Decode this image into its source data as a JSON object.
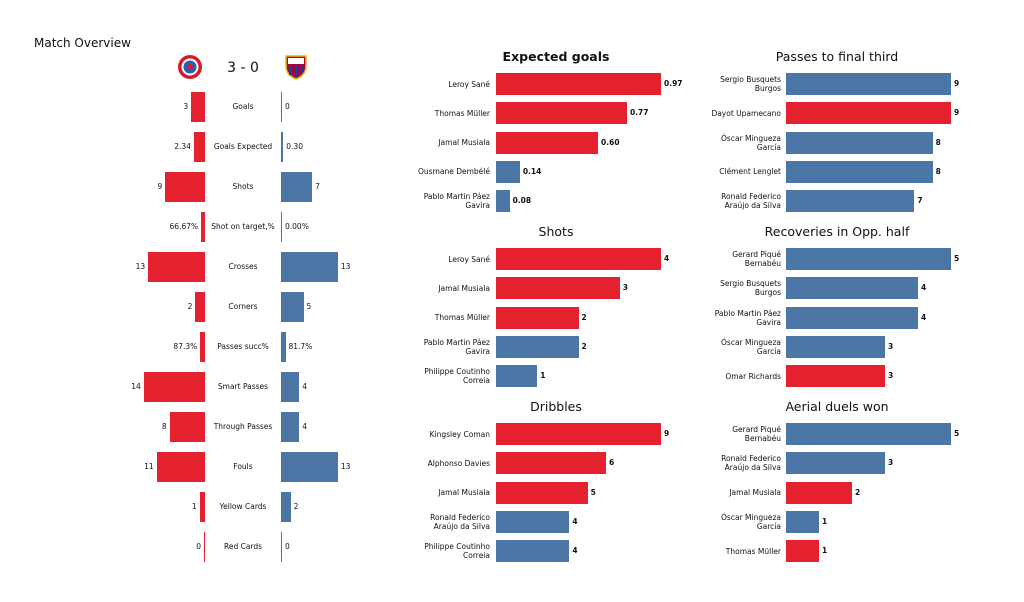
{
  "title": "Match Overview",
  "score": "3 - 0",
  "stats": {
    "labels": [
      "Goals",
      "Goals Expected",
      "Shots",
      "Shot on target,%",
      "Crosses",
      "Corners",
      "Passes succ%",
      "Smart Passes",
      "Through Passes",
      "Fouls",
      "Yellow Cards",
      "Red Cards"
    ],
    "home": {
      "color": "#e5202f",
      "values": [
        3,
        2.34,
        9,
        66.67,
        13,
        2,
        87.3,
        14,
        8,
        11,
        1,
        0
      ],
      "value_labels": [
        "3",
        "2.34",
        "9",
        "66.67%",
        "13",
        "2",
        "87.3%",
        "14",
        "8",
        "11",
        "1",
        "0"
      ]
    },
    "away": {
      "color": "#4b76a6",
      "values": [
        0,
        0.3,
        7,
        0,
        13,
        5,
        81.7,
        4,
        4,
        13,
        2,
        0
      ],
      "value_labels": [
        "0",
        "0.30",
        "7",
        "0.00%",
        "13",
        "5",
        "81.7%",
        "4",
        "4",
        "13",
        "2",
        "0"
      ]
    }
  },
  "chart_data": [
    {
      "type": "hbar",
      "title": "Expected goals",
      "categories": [
        "Leroy Sané",
        "Thomas Müller",
        "Jamal Musiala",
        "Ousmane Dembélé",
        "Pablo Martin Páez Gavira"
      ],
      "values": [
        0.97,
        0.77,
        0.6,
        0.14,
        0.08
      ],
      "value_labels": [
        "0.97",
        "0.77",
        "0.60",
        "0.14",
        "0.08"
      ],
      "colors": [
        "#e5202f",
        "#e5202f",
        "#e5202f",
        "#4b76a6",
        "#4b76a6"
      ]
    },
    {
      "type": "hbar",
      "title": "Passes to final third",
      "categories": [
        "Sergio Busquets Burgos",
        "Dayot Upamecano",
        "Óscar Mingueza García",
        "Clément Lenglet",
        "Ronald Federico Araújo da Silva"
      ],
      "values": [
        9,
        9,
        8,
        8,
        7
      ],
      "colors": [
        "#4b76a6",
        "#e5202f",
        "#4b76a6",
        "#4b76a6",
        "#4b76a6"
      ]
    },
    {
      "type": "hbar",
      "title": "Shots",
      "categories": [
        "Leroy Sané",
        "Jamal Musiala",
        "Thomas Müller",
        "Pablo Martin Páez Gavira",
        "Philippe Coutinho Correia"
      ],
      "values": [
        4,
        3,
        2,
        2,
        1
      ],
      "colors": [
        "#e5202f",
        "#e5202f",
        "#e5202f",
        "#4b76a6",
        "#4b76a6"
      ]
    },
    {
      "type": "hbar",
      "title": "Recoveries in Opp. half",
      "categories": [
        "Gerard Piqué Bernabéu",
        "Sergio Busquets Burgos",
        "Pablo Martin Páez Gavira",
        "Óscar Mingueza García",
        "Omar Richards"
      ],
      "values": [
        5,
        4,
        4,
        3,
        3
      ],
      "colors": [
        "#4b76a6",
        "#4b76a6",
        "#4b76a6",
        "#4b76a6",
        "#e5202f"
      ]
    },
    {
      "type": "hbar",
      "title": "Dribbles",
      "categories": [
        "Kingsley Coman",
        "Alphonso Davies",
        "Jamal Musiala",
        "Ronald Federico Araújo da Silva",
        "Philippe Coutinho Correia"
      ],
      "values": [
        9,
        6,
        5,
        4,
        4
      ],
      "colors": [
        "#e5202f",
        "#e5202f",
        "#e5202f",
        "#4b76a6",
        "#4b76a6"
      ]
    },
    {
      "type": "hbar",
      "title": "Aerial duels won",
      "categories": [
        "Gerard Piqué Bernabéu",
        "Ronald Federico Araújo da Silva",
        "Jamal Musiala",
        "Óscar Mingueza García",
        "Thomas Müller"
      ],
      "values": [
        5,
        3,
        2,
        1,
        1
      ],
      "colors": [
        "#4b76a6",
        "#4b76a6",
        "#e5202f",
        "#4b76a6",
        "#e5202f"
      ]
    }
  ]
}
